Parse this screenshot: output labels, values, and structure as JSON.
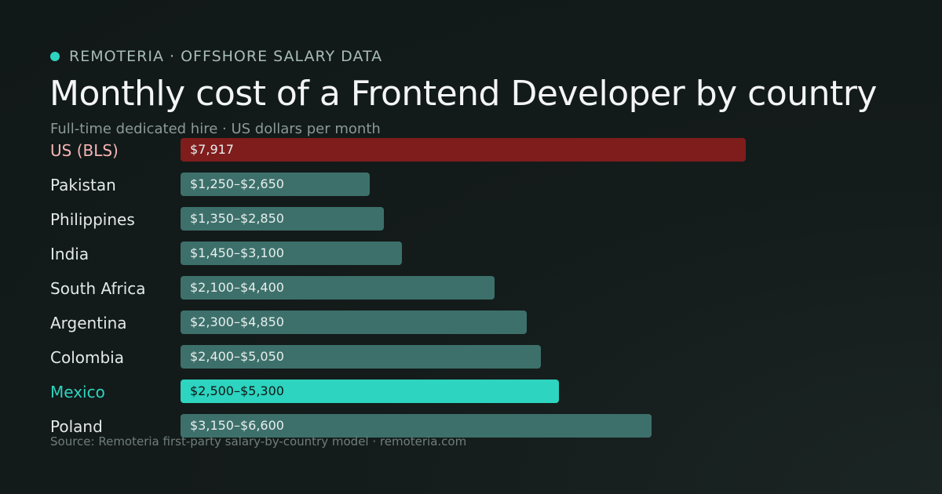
{
  "brand": {
    "name": "REMOTERIA · OFFSHORE SALARY DATA",
    "dot_color": "#2ed3bf"
  },
  "title": "Monthly cost of a Frontend Developer by country",
  "subtitle": "Full-time dedicated hire · US dollars per month",
  "source": "Source: Remoteria first-party salary-by-country model · remoteria.com",
  "colors": {
    "default_bar": "#3d706b",
    "default_label": "#e4e9e8",
    "default_value_text": "#e8eeed",
    "us_bar": "#7f1d1d",
    "us_label": "#f5b5b5",
    "mexico_bar": "#2dd4bf",
    "mexico_label": "#2dd4bf",
    "mexico_value_text": "#0f1716"
  },
  "chart_data": {
    "type": "bar",
    "orientation": "horizontal",
    "title": "Monthly cost of a Frontend Developer by country",
    "subtitle": "Full-time dedicated hire · US dollars per month",
    "categories": [
      "US (BLS)",
      "Pakistan",
      "Philippines",
      "India",
      "South Africa",
      "Argentina",
      "Colombia",
      "Mexico",
      "Poland"
    ],
    "series": [
      {
        "values": [
          7917,
          2650,
          2850,
          3100,
          4400,
          4850,
          5050,
          5300,
          6600
        ],
        "ranges": [
          [
            7917,
            7917
          ],
          [
            1250,
            2650
          ],
          [
            1350,
            2850
          ],
          [
            1450,
            3100
          ],
          [
            2100,
            4400
          ],
          [
            2300,
            4850
          ],
          [
            2400,
            5050
          ],
          [
            2500,
            5300
          ],
          [
            3150,
            6600
          ]
        ],
        "labels": [
          "$7,917",
          "$1,250–$2,650",
          "$1,350–$2,850",
          "$1,450–$3,100",
          "$2,100–$4,400",
          "$2,300–$4,850",
          "$2,400–$5,050",
          "$2,500–$5,300",
          "$3,150–$6,600"
        ]
      }
    ],
    "highlight": {
      "US (BLS)": "us",
      "Mexico": "mexico"
    },
    "xlim": [
      0,
      7917
    ],
    "grid": false,
    "legend": "none"
  }
}
